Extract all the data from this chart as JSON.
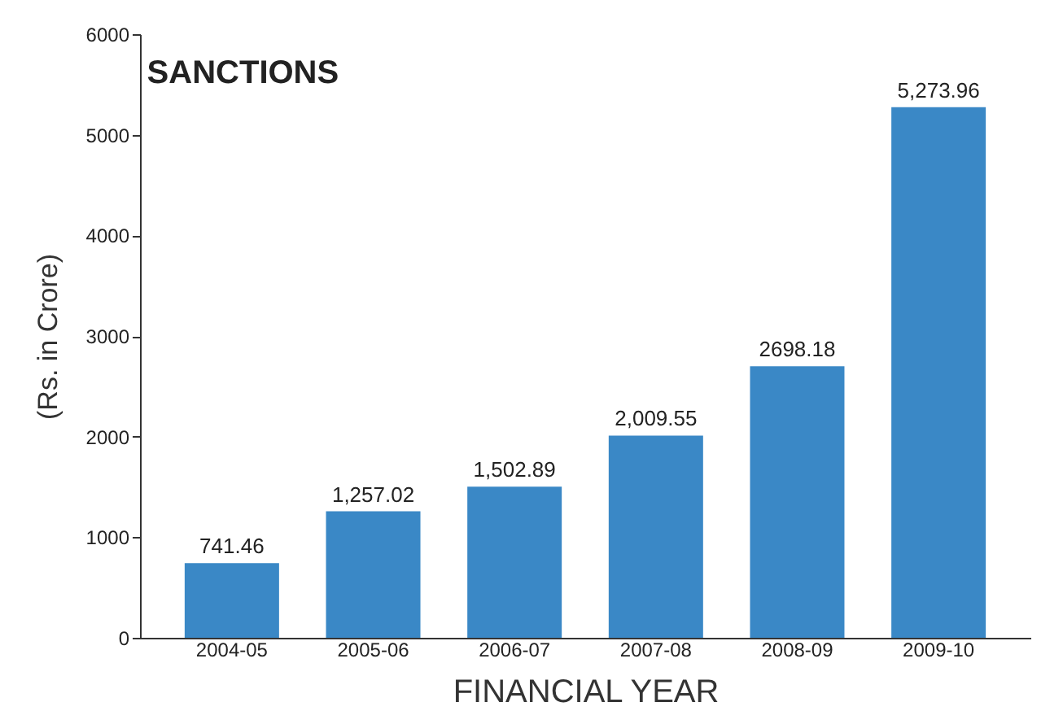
{
  "chart_data": {
    "type": "bar",
    "title": "SANCTIONS",
    "xlabel": "FINANCIAL YEAR",
    "ylabel": "(Rs. in Crore)",
    "categories": [
      "2004-05",
      "2005-06",
      "2006-07",
      "2007-08",
      "2008-09",
      "2009-10"
    ],
    "values": [
      741.46,
      1257.02,
      1502.89,
      2009.55,
      2698.18,
      5273.96
    ],
    "value_labels": [
      "741.46",
      "1,257.02",
      "1,502.89",
      "2,009.55",
      "2698.18",
      "5,273.96"
    ],
    "color": "#3a88c6",
    "ylim": [
      0,
      6000
    ],
    "yticks": [
      0,
      1000,
      2000,
      3000,
      4000,
      5000,
      6000
    ],
    "grid": false
  }
}
